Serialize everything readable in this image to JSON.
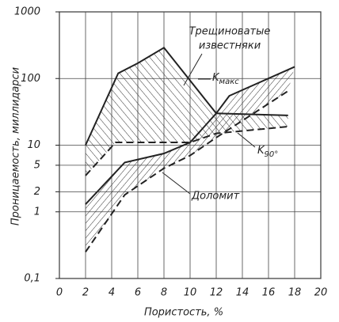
{
  "chart_data": {
    "type": "line",
    "xlabel": "Пористость, %",
    "ylabel": "Проницаемость,  миллидарси",
    "xlim": [
      0,
      20
    ],
    "xticks": [
      0,
      2,
      4,
      6,
      8,
      10,
      12,
      14,
      16,
      18,
      20
    ],
    "ylim": [
      0.1,
      1000
    ],
    "yscale": "log",
    "yticks": [
      {
        "value": 0.1,
        "label": "0,1"
      },
      1,
      2,
      5,
      10,
      100,
      1000
    ],
    "grid": true,
    "color": "#222",
    "series": [
      {
        "x": [
          2,
          4.5,
          6,
          8,
          12,
          17.5
        ],
        "values": [
          10,
          120,
          170,
          290,
          30,
          28
        ],
        "style": "solid"
      },
      {
        "x": [
          2,
          4.3,
          10,
          12,
          17.5
        ],
        "values": [
          3.5,
          11,
          11,
          15,
          19
        ],
        "style": "dashed"
      },
      {
        "x": [
          2,
          5,
          8,
          10,
          12,
          13,
          18
        ],
        "values": [
          1.3,
          5.5,
          7.5,
          11,
          30,
          55,
          150
        ],
        "style": "solid"
      },
      {
        "x": [
          2,
          5,
          8,
          10,
          12,
          17.5
        ],
        "values": [
          0.25,
          1.8,
          4.5,
          7,
          13,
          65
        ],
        "style": "dashed"
      }
    ],
    "fills": [
      {
        "between": [
          0,
          1
        ],
        "hatch": "up"
      },
      {
        "between": [
          2,
          3
        ],
        "hatch": "down"
      }
    ],
    "annotations": {
      "limestone": [
        "Трещиноватые",
        "известняки"
      ],
      "kmax": {
        "text": "K",
        "sub": "макс"
      },
      "k90": {
        "text": "K",
        "sub": "90°"
      },
      "dolomite": "Доломит"
    }
  }
}
